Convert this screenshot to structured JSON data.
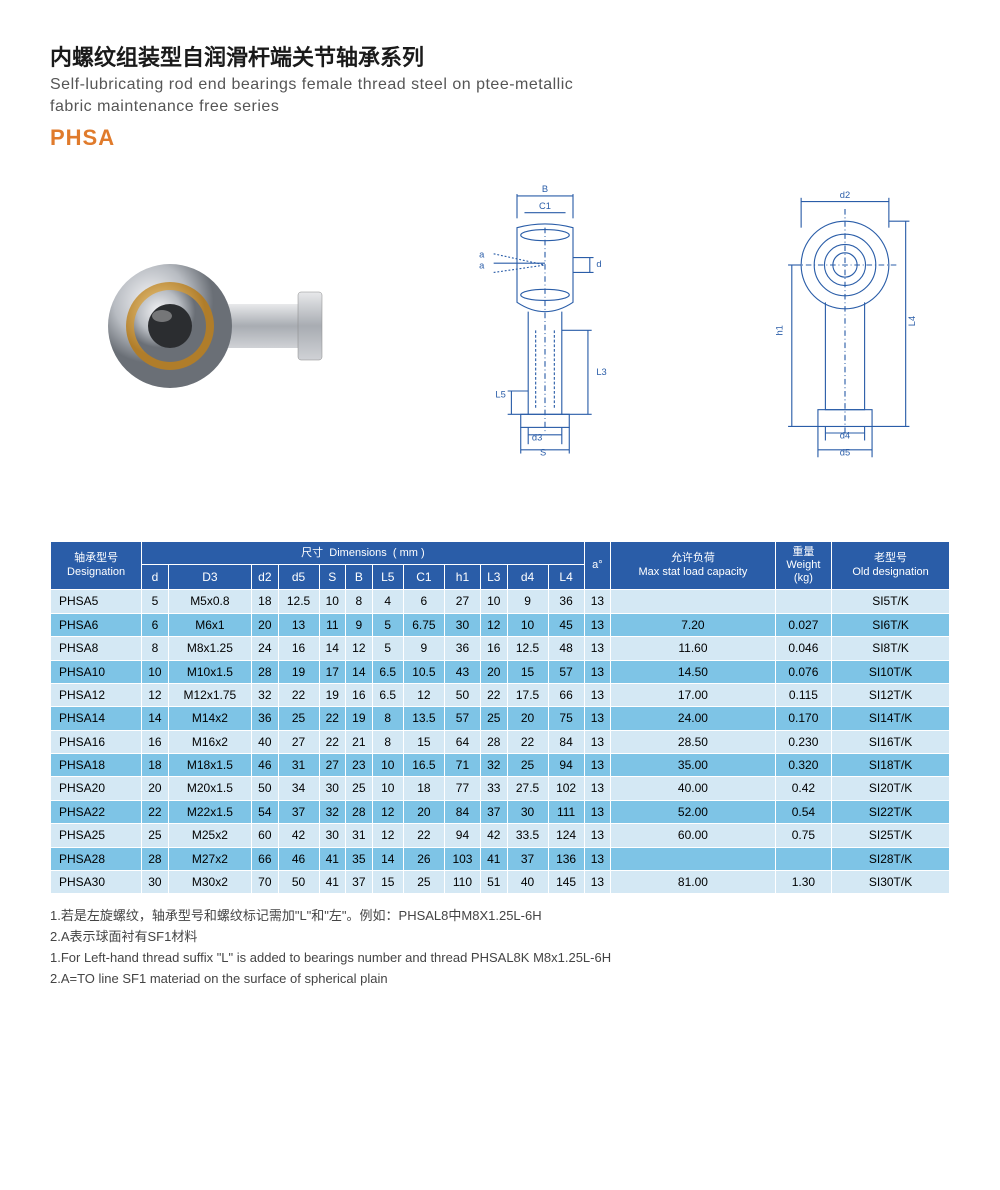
{
  "header": {
    "title_cn": "内螺纹组装型自润滑杆端关节轴承系列",
    "title_en_line1": "Self-lubricating rod end bearings female thread steel on ptee-metallic",
    "title_en_line2": "fabric maintenance free series",
    "code": "PHSA"
  },
  "diagram_labels": {
    "B": "B",
    "C1": "C1",
    "a": "a",
    "d": "d",
    "L5": "L5",
    "d3": "d3",
    "S": "S",
    "L3": "L3",
    "d2": "d2",
    "h1": "h1",
    "L4": "L4",
    "d4": "d4",
    "d5": "d5"
  },
  "table": {
    "headers": {
      "designation": {
        "cn": "轴承型号",
        "en": "Designation"
      },
      "dimensions": {
        "cn": "尺寸",
        "en": "Dimensions",
        "unit": "( mm )"
      },
      "cols": [
        "d",
        "D3",
        "d2",
        "d5",
        "S",
        "B",
        "L5",
        "C1",
        "h1",
        "L3",
        "d4",
        "L4"
      ],
      "adeg": "a°",
      "maxstat": {
        "cn": "允许负荷",
        "en": "Max stat load capacity"
      },
      "weight": {
        "cn": "重量",
        "en": "Weight",
        "unit": "(kg)"
      },
      "olddes": {
        "cn": "老型号",
        "en": "Old designation"
      }
    },
    "rows": [
      {
        "des": "PHSA5",
        "d": "5",
        "D3": "M5x0.8",
        "d2": "18",
        "d5": "12.5",
        "S": "10",
        "B": "8",
        "L5": "4",
        "C1": "6",
        "h1": "27",
        "L3": "10",
        "d4": "9",
        "L4": "36",
        "a": "13",
        "max": "",
        "w": "",
        "old": "SI5T/K"
      },
      {
        "des": "PHSA6",
        "d": "6",
        "D3": "M6x1",
        "d2": "20",
        "d5": "13",
        "S": "11",
        "B": "9",
        "L5": "5",
        "C1": "6.75",
        "h1": "30",
        "L3": "12",
        "d4": "10",
        "L4": "45",
        "a": "13",
        "max": "7.20",
        "w": "0.027",
        "old": "SI6T/K"
      },
      {
        "des": "PHSA8",
        "d": "8",
        "D3": "M8x1.25",
        "d2": "24",
        "d5": "16",
        "S": "14",
        "B": "12",
        "L5": "5",
        "C1": "9",
        "h1": "36",
        "L3": "16",
        "d4": "12.5",
        "L4": "48",
        "a": "13",
        "max": "11.60",
        "w": "0.046",
        "old": "SI8T/K"
      },
      {
        "des": "PHSA10",
        "d": "10",
        "D3": "M10x1.5",
        "d2": "28",
        "d5": "19",
        "S": "17",
        "B": "14",
        "L5": "6.5",
        "C1": "10.5",
        "h1": "43",
        "L3": "20",
        "d4": "15",
        "L4": "57",
        "a": "13",
        "max": "14.50",
        "w": "0.076",
        "old": "SI10T/K"
      },
      {
        "des": "PHSA12",
        "d": "12",
        "D3": "M12x1.75",
        "d2": "32",
        "d5": "22",
        "S": "19",
        "B": "16",
        "L5": "6.5",
        "C1": "12",
        "h1": "50",
        "L3": "22",
        "d4": "17.5",
        "L4": "66",
        "a": "13",
        "max": "17.00",
        "w": "0.115",
        "old": "SI12T/K"
      },
      {
        "des": "PHSA14",
        "d": "14",
        "D3": "M14x2",
        "d2": "36",
        "d5": "25",
        "S": "22",
        "B": "19",
        "L5": "8",
        "C1": "13.5",
        "h1": "57",
        "L3": "25",
        "d4": "20",
        "L4": "75",
        "a": "13",
        "max": "24.00",
        "w": "0.170",
        "old": "SI14T/K"
      },
      {
        "des": "PHSA16",
        "d": "16",
        "D3": "M16x2",
        "d2": "40",
        "d5": "27",
        "S": "22",
        "B": "21",
        "L5": "8",
        "C1": "15",
        "h1": "64",
        "L3": "28",
        "d4": "22",
        "L4": "84",
        "a": "13",
        "max": "28.50",
        "w": "0.230",
        "old": "SI16T/K"
      },
      {
        "des": "PHSA18",
        "d": "18",
        "D3": "M18x1.5",
        "d2": "46",
        "d5": "31",
        "S": "27",
        "B": "23",
        "L5": "10",
        "C1": "16.5",
        "h1": "71",
        "L3": "32",
        "d4": "25",
        "L4": "94",
        "a": "13",
        "max": "35.00",
        "w": "0.320",
        "old": "SI18T/K"
      },
      {
        "des": "PHSA20",
        "d": "20",
        "D3": "M20x1.5",
        "d2": "50",
        "d5": "34",
        "S": "30",
        "B": "25",
        "L5": "10",
        "C1": "18",
        "h1": "77",
        "L3": "33",
        "d4": "27.5",
        "L4": "102",
        "a": "13",
        "max": "40.00",
        "w": "0.42",
        "old": "SI20T/K"
      },
      {
        "des": "PHSA22",
        "d": "22",
        "D3": "M22x1.5",
        "d2": "54",
        "d5": "37",
        "S": "32",
        "B": "28",
        "L5": "12",
        "C1": "20",
        "h1": "84",
        "L3": "37",
        "d4": "30",
        "L4": "111",
        "a": "13",
        "max": "52.00",
        "w": "0.54",
        "old": "SI22T/K"
      },
      {
        "des": "PHSA25",
        "d": "25",
        "D3": "M25x2",
        "d2": "60",
        "d5": "42",
        "S": "30",
        "B": "31",
        "L5": "12",
        "C1": "22",
        "h1": "94",
        "L3": "42",
        "d4": "33.5",
        "L4": "124",
        "a": "13",
        "max": "60.00",
        "w": "0.75",
        "old": "SI25T/K"
      },
      {
        "des": "PHSA28",
        "d": "28",
        "D3": "M27x2",
        "d2": "66",
        "d5": "46",
        "S": "41",
        "B": "35",
        "L5": "14",
        "C1": "26",
        "h1": "103",
        "L3": "41",
        "d4": "37",
        "L4": "136",
        "a": "13",
        "max": "",
        "w": "",
        "old": "SI28T/K"
      },
      {
        "des": "PHSA30",
        "d": "30",
        "D3": "M30x2",
        "d2": "70",
        "d5": "50",
        "S": "41",
        "B": "37",
        "L5": "15",
        "C1": "25",
        "h1": "110",
        "L3": "51",
        "d4": "40",
        "L4": "145",
        "a": "13",
        "max": "81.00",
        "w": "1.30",
        "old": "SI30T/K"
      }
    ]
  },
  "notes": {
    "n1": "1.若是左旋螺纹，轴承型号和螺纹标记需加\"L\"和\"左\"。例如：PHSAL8中M8X1.25L-6H",
    "n2": "2.A表示球面衬有SF1材料",
    "n3": "1.For Left-hand thread suffix \"L\" is added to bearings number and thread PHSAL8K M8x1.25L-6H",
    "n4": "2.A=TO line SF1 materiad on the surface of spherical plain"
  },
  "colors": {
    "header_bg": "#2a5da8",
    "row_odd": "#d4e8f4",
    "row_even": "#7ec4e6",
    "accent": "#e07b2c"
  }
}
